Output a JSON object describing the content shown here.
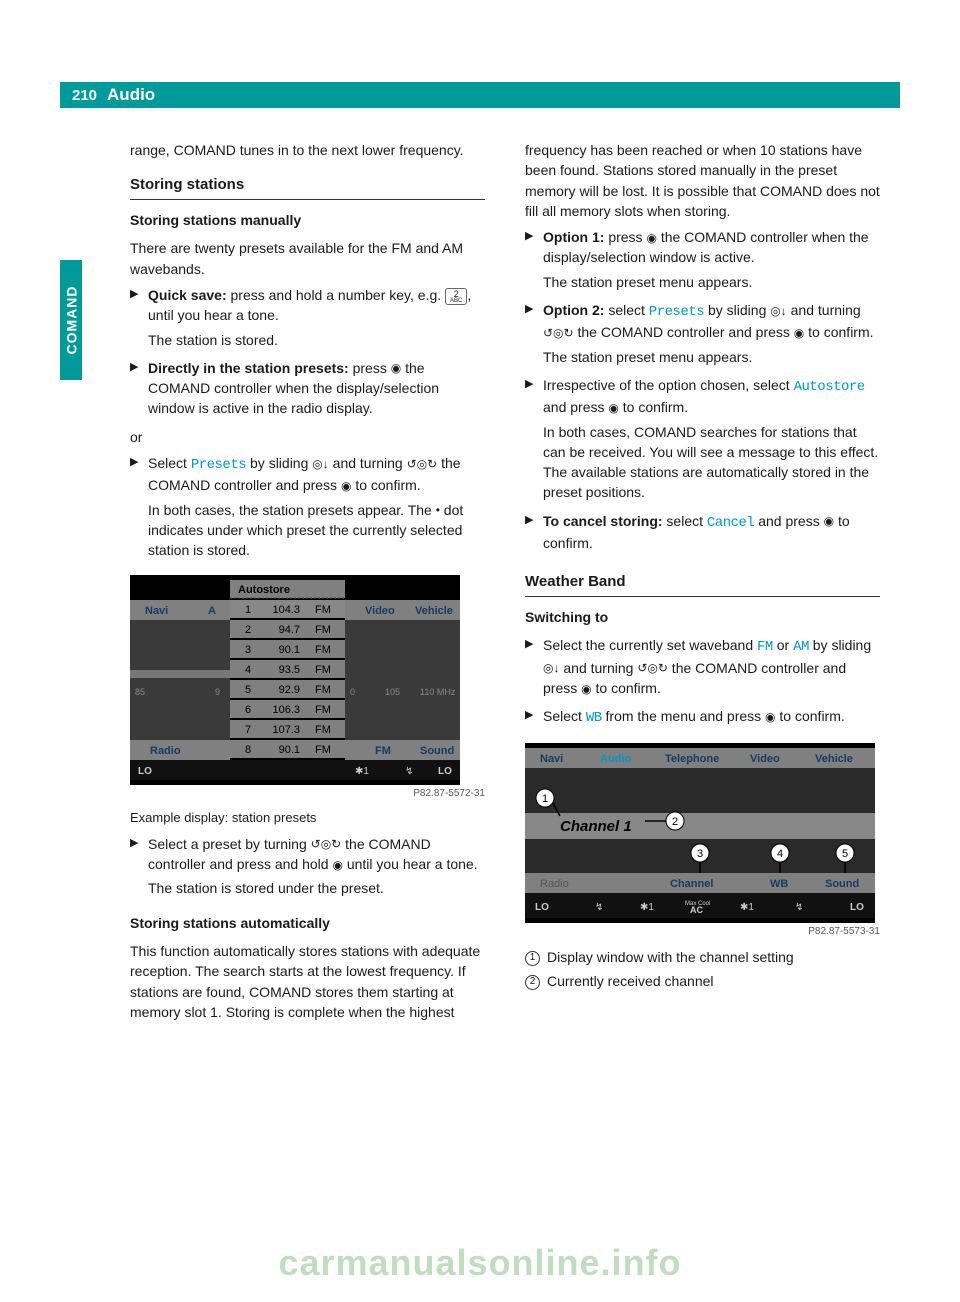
{
  "header": {
    "page_num": "210",
    "title": "Audio"
  },
  "side_tab": "COMAND",
  "col1": {
    "intro": "range, COMAND tunes in to the next lower frequency.",
    "h_storing": "Storing stations",
    "h_manual": "Storing stations manually",
    "manual_intro": "There are twenty presets available for the FM and AM wavebands.",
    "quick_save_label": "Quick save:",
    "quick_save_1": " press and hold a number key, e.g. ",
    "quick_save_2": ", until you hear a tone.",
    "quick_save_3": "The station is stored.",
    "direct_label": "Directly in the station presets:",
    "direct_1": " press ",
    "direct_2": " the COMAND controller when the display/selection window is active in the radio display.",
    "or": "or",
    "select_presets_1": "Select ",
    "select_presets_kw": "Presets",
    "select_presets_2": " by sliding ",
    "select_presets_3": " and turning ",
    "select_presets_4": " the COMAND controller and press ",
    "select_presets_5": " to confirm.",
    "select_presets_6": "In both cases, the station presets appear. The ",
    "select_presets_7": " dot indicates under which preset the currently selected station is stored.",
    "fig_label": "Example display: station presets",
    "sel_preset_1": "Select a preset by turning ",
    "sel_preset_2": " the COMAND controller and press and hold ",
    "sel_preset_3": " until you hear a tone.",
    "sel_preset_4": "The station is stored under the preset.",
    "h_auto": "Storing stations automatically",
    "auto_1": "This function automatically stores stations with adequate reception. The search starts at the lowest frequency. If stations are found, COMAND stores them starting at memory slot 1. Storing is complete when the highest"
  },
  "col2": {
    "cont": "frequency has been reached or when 10 stations have been found. Stations stored manually in the preset memory will be lost. It is possible that COMAND does not fill all memory slots when storing.",
    "opt1_label": "Option 1:",
    "opt1_1": " press ",
    "opt1_2": " the COMAND controller when the display/selection window is active.",
    "opt1_3": "The station preset menu appears.",
    "opt2_label": "Option 2:",
    "opt2_1": " select ",
    "opt2_kw": "Presets",
    "opt2_2": " by sliding ",
    "opt2_3": " and turning ",
    "opt2_4": " the COMAND controller and press ",
    "opt2_5": " to confirm.",
    "opt2_6": "The station preset menu appears.",
    "irr_1": "Irrespective of the option chosen, select ",
    "irr_kw": "Autostore",
    "irr_2": " and press ",
    "irr_3": " to confirm.",
    "irr_4": "In both cases, COMAND searches for stations that can be received. You will see a message to this effect. The available stations are automatically stored in the preset positions.",
    "cancel_label": "To cancel storing:",
    "cancel_1": " select ",
    "cancel_kw": "Cancel",
    "cancel_2": " and press ",
    "cancel_3": " to confirm.",
    "h_wb": "Weather Band",
    "h_switch": "Switching to",
    "sw_1": "Select the currently set waveband ",
    "sw_fm": "FM",
    "sw_2": " or ",
    "sw_am": "AM",
    "sw_3": " by sliding ",
    "sw_4": " and turning ",
    "sw_5": " the COMAND controller and press ",
    "sw_6": " to confirm.",
    "wb_1": "Select ",
    "wb_kw": "WB",
    "wb_2": " from the menu and press ",
    "wb_3": " to confirm.",
    "leg1": "Display window with the channel setting",
    "leg2": "Currently received channel"
  },
  "fig1": {
    "id": "P82.87-5572-31",
    "autostore": "Autostore",
    "navi": "Navi",
    "video": "Video",
    "vehicle": "Vehicle",
    "radio": "Radio",
    "fm": "FM",
    "sound": "Sound",
    "lo": "LO",
    "rows": [
      {
        "n": "1",
        "f": "104.3",
        "b": "FM"
      },
      {
        "n": "2",
        "f": "94.7",
        "b": "FM"
      },
      {
        "n": "3",
        "f": "90.1",
        "b": "FM"
      },
      {
        "n": "4",
        "f": "93.5",
        "b": "FM"
      },
      {
        "n": "5",
        "f": "92.9",
        "b": "FM"
      },
      {
        "n": "6",
        "f": "106.3",
        "b": "FM"
      },
      {
        "n": "7",
        "f": "107.3",
        "b": "FM"
      },
      {
        "n": "8",
        "f": "90.1",
        "b": "FM"
      }
    ],
    "ticks": [
      "85",
      "9",
      "0",
      "105",
      "110 MHz"
    ]
  },
  "fig2": {
    "id": "P82.87-5573-31",
    "navi": "Navi",
    "audio": "Audio",
    "telephone": "Telephone",
    "video": "Video",
    "vehicle": "Vehicle",
    "channel": "Channel 1",
    "radio": "Radio",
    "ch": "Channel",
    "wb": "WB",
    "sound": "Sound",
    "lo": "LO",
    "ac": "AC",
    "mc": "Max Cool"
  },
  "watermark": "carmanualsonline.info"
}
